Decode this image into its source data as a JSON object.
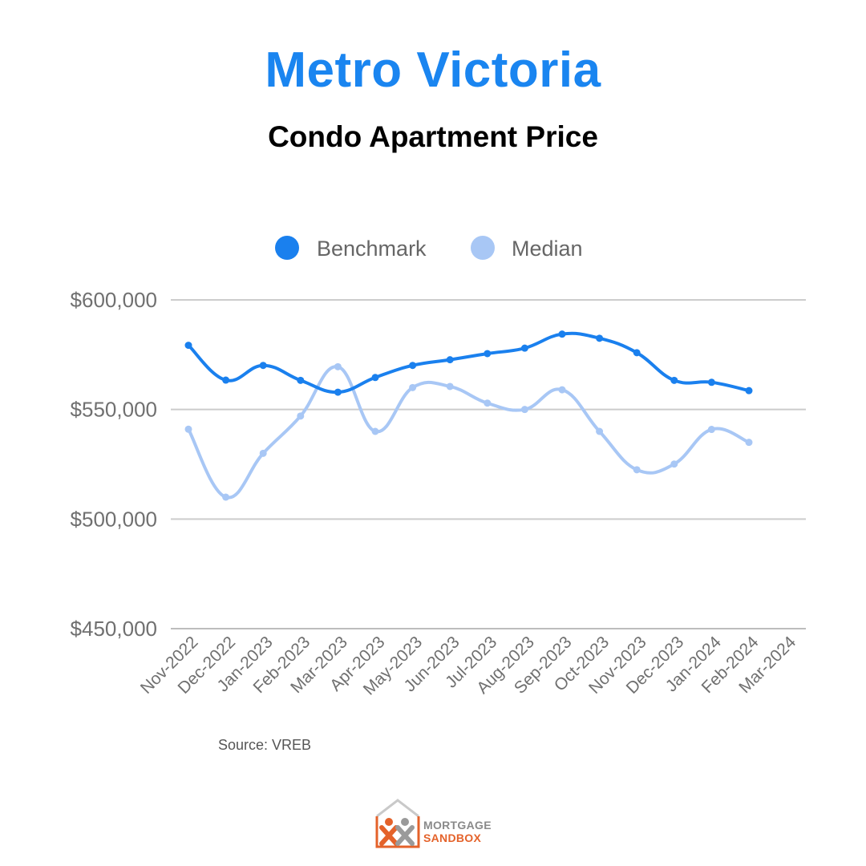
{
  "header": {
    "title": "Metro Victoria",
    "subtitle": "Condo Apartment Price"
  },
  "source": "Source: VREB",
  "logo": {
    "line1": "MORTGAGE",
    "line2": "SANDBOX",
    "colors": {
      "orange": "#e4622a",
      "gray": "#8a8a8a"
    }
  },
  "chart_data": {
    "type": "line",
    "title": "",
    "xlabel": "",
    "ylabel": "",
    "categories": [
      "Nov-2022",
      "Dec-2022",
      "Jan-2023",
      "Feb-2023",
      "Mar-2023",
      "Apr-2023",
      "May-2023",
      "Jun-2023",
      "Jul-2023",
      "Aug-2023",
      "Sep-2023",
      "Oct-2023",
      "Nov-2023",
      "Dec-2023",
      "Jan-2024",
      "Feb-2024",
      "Mar-2024"
    ],
    "ylim": [
      450000,
      600000
    ],
    "yticks": [
      600000,
      550000,
      500000,
      450000
    ],
    "ytick_labels": [
      "$600,000",
      "$550,000",
      "$500,000",
      "$450,000"
    ],
    "grid": true,
    "legend_position": "top",
    "series": [
      {
        "name": "Benchmark",
        "color": "#1a80ee",
        "values": [
          579300,
          563400,
          570100,
          563300,
          557900,
          564600,
          570100,
          572700,
          575500,
          578000,
          584400,
          582500,
          575900,
          563300,
          562400,
          558600,
          null
        ]
      },
      {
        "name": "Median",
        "color": "#a8c7f5",
        "values": [
          541000,
          510000,
          530000,
          547000,
          569500,
          540000,
          560000,
          560500,
          552900,
          550000,
          559000,
          540000,
          522500,
          525100,
          540900,
          535000,
          null
        ]
      }
    ]
  }
}
